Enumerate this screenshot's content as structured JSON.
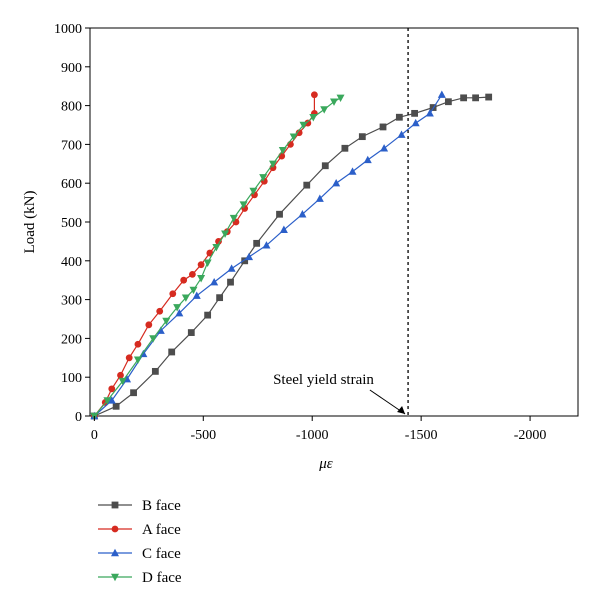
{
  "chart_data": {
    "type": "line",
    "title": "",
    "xlabel": "με",
    "ylabel": "Load (kN)",
    "xlim": [
      20,
      -2220
    ],
    "ylim": [
      0,
      1000
    ],
    "x_ticks": [
      0,
      -500,
      -1000,
      -1500,
      -2000
    ],
    "x_tick_labels": [
      "0",
      "-500",
      "-1000",
      "-1500",
      "-2000"
    ],
    "y_ticks": [
      0,
      100,
      200,
      300,
      400,
      500,
      600,
      700,
      800,
      900,
      1000
    ],
    "y_tick_labels": [
      "0",
      "100",
      "200",
      "300",
      "400",
      "500",
      "600",
      "700",
      "800",
      "900",
      "1000"
    ],
    "grid": false,
    "legend_position": "below",
    "annotations": [
      {
        "text": "Steel yield strain",
        "x": -1430,
        "y": 0,
        "line_x": -1440,
        "line_style": "dotted"
      }
    ],
    "series": [
      {
        "name": "B face",
        "color": "#4d4d4d",
        "marker": "square",
        "x": [
          0,
          -100,
          -180,
          -280,
          -355,
          -445,
          -520,
          -575,
          -625,
          -690,
          -745,
          -850,
          -975,
          -1060,
          -1150,
          -1230,
          -1325,
          -1400,
          -1470,
          -1555,
          -1625,
          -1695,
          -1750,
          -1810
        ],
        "y": [
          0,
          25,
          60,
          115,
          165,
          215,
          260,
          305,
          345,
          400,
          445,
          520,
          595,
          645,
          690,
          720,
          745,
          770,
          780,
          795,
          810,
          820,
          820,
          822
        ]
      },
      {
        "name": "A face",
        "color": "#d62b20",
        "marker": "circle",
        "x": [
          0,
          -50,
          -80,
          -120,
          -160,
          -200,
          -250,
          -300,
          -360,
          -410,
          -450,
          -490,
          -530,
          -570,
          -610,
          -650,
          -690,
          -735,
          -780,
          -820,
          -860,
          -900,
          -940,
          -980,
          -1010,
          -1010
        ],
        "y": [
          0,
          35,
          70,
          105,
          150,
          185,
          235,
          270,
          315,
          350,
          365,
          390,
          420,
          450,
          475,
          500,
          535,
          570,
          605,
          640,
          670,
          700,
          730,
          755,
          780,
          828
        ]
      },
      {
        "name": "C face",
        "color": "#2b5fc9",
        "marker": "triangle-up",
        "x": [
          0,
          -80,
          -150,
          -225,
          -305,
          -390,
          -470,
          -550,
          -630,
          -710,
          -790,
          -870,
          -955,
          -1035,
          -1110,
          -1185,
          -1255,
          -1330,
          -1410,
          -1475,
          -1540,
          -1595
        ],
        "y": [
          0,
          40,
          95,
          160,
          220,
          265,
          310,
          345,
          380,
          410,
          440,
          480,
          520,
          560,
          600,
          630,
          660,
          690,
          725,
          755,
          780,
          828
        ]
      },
      {
        "name": "D face",
        "color": "#3aa85c",
        "marker": "triangle-down",
        "x": [
          0,
          -60,
          -130,
          -200,
          -270,
          -330,
          -380,
          -420,
          -455,
          -490,
          -520,
          -560,
          -600,
          -640,
          -685,
          -730,
          -775,
          -820,
          -865,
          -915,
          -960,
          -1005,
          -1055,
          -1100,
          -1130
        ],
        "y": [
          0,
          40,
          90,
          145,
          200,
          245,
          280,
          305,
          325,
          355,
          395,
          435,
          470,
          510,
          545,
          580,
          615,
          650,
          685,
          720,
          750,
          770,
          790,
          810,
          820
        ]
      }
    ]
  }
}
